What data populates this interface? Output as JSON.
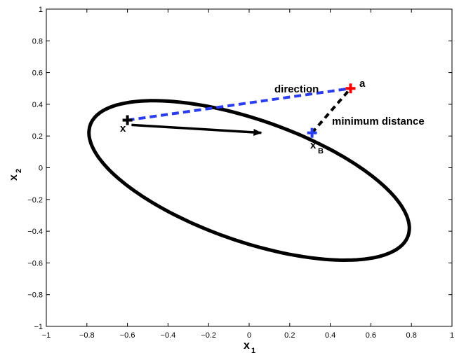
{
  "chart_data": {
    "type": "line",
    "xlabel": "x",
    "xlabel_sub": "1",
    "ylabel": "x",
    "ylabel_sub": "2",
    "xlim": [
      -1,
      1
    ],
    "ylim": [
      -1,
      1
    ],
    "xticks": [
      "−1",
      "−0.8",
      "−0.6",
      "−0.4",
      "−0.2",
      "0",
      "0.2",
      "0.4",
      "0.6",
      "0.8",
      "1"
    ],
    "yticks": [
      "−1",
      "−0.8",
      "−0.6",
      "−0.4",
      "−0.2",
      "0",
      "0.2",
      "0.4",
      "0.6",
      "0.8",
      "1"
    ],
    "grid": false,
    "ellipse": {
      "center": [
        0,
        -0.08
      ],
      "semi_major": 0.86,
      "semi_minor": 0.37,
      "rotation_deg": -26,
      "color": "#000000"
    },
    "points": {
      "x": {
        "label": "x",
        "coords": [
          -0.6,
          0.3
        ],
        "color": "#000000"
      },
      "a": {
        "label": "a",
        "coords": [
          0.5,
          0.5
        ],
        "color": "#ff0000"
      },
      "xB": {
        "label": "x",
        "label_sub": "B",
        "coords": [
          0.31,
          0.22
        ],
        "color": "#2a3cf0"
      }
    },
    "arrow": {
      "from": [
        -0.58,
        0.27
      ],
      "to": [
        0.06,
        0.22
      ],
      "color": "#000000"
    },
    "lines": {
      "direction": {
        "label": "direction",
        "from": [
          -0.6,
          0.3
        ],
        "to": [
          0.5,
          0.5
        ],
        "color": "#2a3cf0",
        "style": "dashed"
      },
      "minimum_distance": {
        "label": "minimum distance",
        "from": [
          0.31,
          0.22
        ],
        "to": [
          0.5,
          0.5
        ],
        "color": "#000000",
        "style": "dashed"
      }
    }
  }
}
